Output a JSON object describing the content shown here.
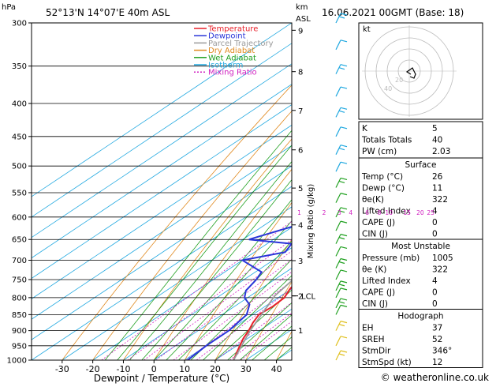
{
  "header": {
    "location": "52°13'N  14°07'E  40m  ASL",
    "datetime": "16.06.2021  00GMT  (Base: 18)",
    "hpa_label": "hPa",
    "km_label": "km",
    "asl_label": "ASL"
  },
  "legend": [
    {
      "label": "Temperature",
      "color": "#e8202a",
      "dash": ""
    },
    {
      "label": "Dewpoint",
      "color": "#2a35d8",
      "dash": ""
    },
    {
      "label": "Parcel Trajectory",
      "color": "#9a9a9a",
      "dash": ""
    },
    {
      "label": "Dry Adiabat",
      "color": "#e08a20",
      "dash": ""
    },
    {
      "label": "Wet Adiabat",
      "color": "#20a020",
      "dash": ""
    },
    {
      "label": "Isotherm",
      "color": "#20a8e0",
      "dash": ""
    },
    {
      "label": "Mixing Ratio",
      "color": "#d020c0",
      "dash": "2,2"
    }
  ],
  "chart_data": {
    "type": "line",
    "title": "",
    "xlabel": "Dewpoint / Temperature (°C)",
    "ylabel_right": "Mixing Ratio (g/kg)",
    "x_ticks": [
      "-30",
      "-20",
      "-10",
      "0",
      "10",
      "20",
      "30",
      "40"
    ],
    "pressure_levels": [
      300,
      350,
      400,
      450,
      500,
      550,
      600,
      650,
      700,
      750,
      800,
      850,
      900,
      950,
      1000
    ],
    "km_ticks": [
      {
        "km": 1,
        "p": 899
      },
      {
        "km": 2,
        "p": 795
      },
      {
        "km": 3,
        "p": 701
      },
      {
        "km": 4,
        "p": 617
      },
      {
        "km": 5,
        "p": 541
      },
      {
        "km": 6,
        "p": 472
      },
      {
        "km": 7,
        "p": 410
      },
      {
        "km": 8,
        "p": 357
      },
      {
        "km": 9,
        "p": 308
      }
    ],
    "lcl_label": "LCL",
    "lcl_pressure": 795,
    "mixing_ratio_labels": [
      "1",
      "2",
      "3",
      "4",
      "6",
      "8",
      "10",
      "15",
      "20",
      "25"
    ],
    "mixing_ratio_values": [
      1,
      2,
      3,
      4,
      6,
      8,
      10,
      15,
      20,
      25
    ],
    "series": [
      {
        "name": "Temperature",
        "color": "#e8202a",
        "points": [
          [
            1000,
            26
          ],
          [
            975,
            23.5
          ],
          [
            950,
            21
          ],
          [
            925,
            18.5
          ],
          [
            900,
            16.5
          ],
          [
            875,
            14
          ],
          [
            850,
            12
          ],
          [
            825,
            12.5
          ],
          [
            800,
            12
          ],
          [
            775,
            9.5
          ],
          [
            750,
            8
          ],
          [
            725,
            6.5
          ],
          [
            700,
            6
          ],
          [
            675,
            3
          ],
          [
            650,
            1
          ],
          [
            625,
            -1
          ],
          [
            600,
            -3
          ],
          [
            575,
            -5
          ],
          [
            550,
            -7
          ],
          [
            525,
            -9.5
          ],
          [
            500,
            -12
          ],
          [
            450,
            -18
          ],
          [
            400,
            -25
          ],
          [
            350,
            -33
          ],
          [
            300,
            -42
          ]
        ]
      },
      {
        "name": "Dewpoint",
        "color": "#2a35d8",
        "points": [
          [
            1000,
            11
          ],
          [
            950,
            10
          ],
          [
            900,
            10
          ],
          [
            850,
            8
          ],
          [
            820,
            4
          ],
          [
            800,
            -1
          ],
          [
            780,
            -4
          ],
          [
            750,
            -6
          ],
          [
            730,
            -8
          ],
          [
            700,
            -20
          ],
          [
            680,
            -10
          ],
          [
            660,
            -12
          ],
          [
            650,
            -28
          ],
          [
            620,
            -20
          ],
          [
            600,
            -19
          ],
          [
            570,
            -17
          ],
          [
            560,
            -16
          ],
          [
            550,
            -23
          ],
          [
            540,
            -30
          ],
          [
            520,
            -19
          ],
          [
            500,
            -17
          ],
          [
            450,
            -19
          ],
          [
            400,
            -45
          ],
          [
            350,
            -43
          ],
          [
            300,
            -35
          ]
        ]
      },
      {
        "name": "Parcel Trajectory",
        "color": "#9a9a9a",
        "points": [
          [
            1000,
            26
          ],
          [
            900,
            17
          ],
          [
            795,
            8
          ],
          [
            750,
            6
          ],
          [
            700,
            3
          ],
          [
            650,
            0
          ],
          [
            600,
            -3.5
          ],
          [
            550,
            -7.5
          ],
          [
            500,
            -12.5
          ],
          [
            450,
            -18.5
          ],
          [
            400,
            -26
          ],
          [
            350,
            -35
          ],
          [
            300,
            -46
          ]
        ]
      }
    ]
  },
  "hodograph": {
    "label": "kt",
    "ring_labels": [
      "20",
      "40"
    ]
  },
  "indices": [
    {
      "label": "K",
      "value": "5"
    },
    {
      "label": "Totals Totals",
      "value": "40"
    },
    {
      "label": "PW (cm)",
      "value": "2.03"
    }
  ],
  "surface": {
    "title": "Surface",
    "rows": [
      {
        "label": "Temp (°C)",
        "value": "26"
      },
      {
        "label": "Dewp (°C)",
        "value": "11"
      },
      {
        "label": "θe(K)",
        "value": "322"
      },
      {
        "label": "Lifted Index",
        "value": "4"
      },
      {
        "label": "CAPE (J)",
        "value": "0"
      },
      {
        "label": "CIN (J)",
        "value": "0"
      }
    ]
  },
  "most_unstable": {
    "title": "Most Unstable",
    "rows": [
      {
        "label": "Pressure (mb)",
        "value": "1005"
      },
      {
        "label": "θe (K)",
        "value": "322"
      },
      {
        "label": "Lifted Index",
        "value": "4"
      },
      {
        "label": "CAPE (J)",
        "value": "0"
      },
      {
        "label": "CIN (J)",
        "value": "0"
      }
    ]
  },
  "hodograph_table": {
    "title": "Hodograph",
    "rows": [
      {
        "label": "EH",
        "value": "37"
      },
      {
        "label": "SREH",
        "value": "52"
      },
      {
        "label": "StmDir",
        "value": "346°"
      },
      {
        "label": "StmSpd (kt)",
        "value": "12"
      }
    ]
  },
  "footer": {
    "copyright": "© weatheronline.co.uk"
  }
}
